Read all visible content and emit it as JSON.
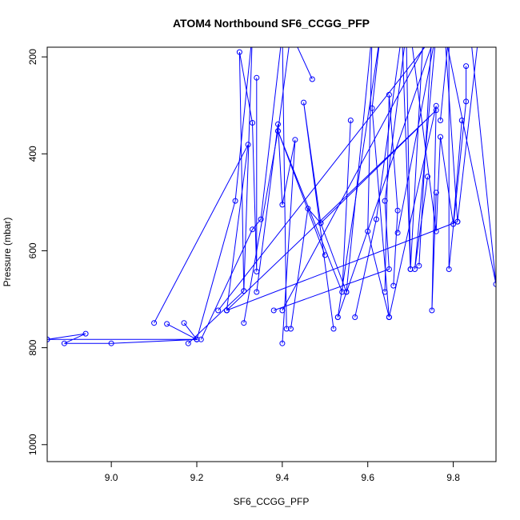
{
  "chart_data": {
    "type": "line",
    "title": "ATOM4 Northbound SF6_CCGG_PFP",
    "xlabel": "SF6_CCGG_PFP",
    "ylabel": "Pressure (mbar)",
    "xlim": [
      8.85,
      9.9
    ],
    "ylim": [
      1035,
      180
    ],
    "y_reversed": true,
    "x_ticks": [
      "9.0",
      "9.2",
      "9.4",
      "9.6",
      "9.8"
    ],
    "x_tick_values": [
      9.0,
      9.2,
      9.4,
      9.6,
      9.8
    ],
    "y_ticks": [
      "200",
      "400",
      "600",
      "800",
      "1000"
    ],
    "y_tick_values": [
      200,
      400,
      600,
      800,
      1000
    ],
    "grid": false,
    "legend": "none",
    "color": "#0000ff",
    "series": [
      {
        "points": [
          [
            8.85,
            783
          ],
          [
            8.94,
            771
          ],
          [
            8.89,
            791
          ],
          [
            9.0,
            791
          ],
          [
            9.2,
            783
          ],
          [
            9.13,
            751
          ],
          [
            9.2,
            783
          ],
          [
            8.85,
            783
          ]
        ]
      },
      {
        "points": [
          [
            9.1,
            749
          ],
          [
            9.32,
            381
          ],
          [
            9.27,
            723
          ]
        ]
      },
      {
        "points": [
          [
            9.17,
            749
          ],
          [
            9.2,
            783
          ],
          [
            9.29,
            497
          ],
          [
            9.33,
            150
          ],
          [
            9.31,
            683
          ]
        ]
      },
      {
        "points": [
          [
            9.18,
            791
          ],
          [
            9.31,
            683
          ],
          [
            9.3,
            190
          ],
          [
            9.33,
            336
          ],
          [
            9.34,
            643
          ],
          [
            9.34,
            243
          ]
        ]
      },
      {
        "points": [
          [
            9.21,
            783
          ],
          [
            9.33,
            556
          ],
          [
            9.35,
            535
          ],
          [
            9.4,
            150
          ],
          [
            9.41,
            761
          ]
        ]
      },
      {
        "points": [
          [
            9.27,
            723
          ],
          [
            9.76,
            310
          ],
          [
            9.49,
            543
          ],
          [
            9.55,
            685
          ]
        ]
      },
      {
        "points": [
          [
            9.31,
            749
          ],
          [
            9.39,
            353
          ],
          [
            9.42,
            150
          ],
          [
            9.47,
            246
          ]
        ]
      },
      {
        "points": [
          [
            9.34,
            685
          ],
          [
            9.39,
            339
          ],
          [
            9.4,
            505
          ],
          [
            9.43,
            371
          ],
          [
            9.4,
            791
          ]
        ]
      },
      {
        "points": [
          [
            9.38,
            723
          ],
          [
            9.65,
            638
          ],
          [
            9.64,
            497
          ],
          [
            9.69,
            150
          ],
          [
            9.7,
            638
          ]
        ]
      },
      {
        "points": [
          [
            9.42,
            761
          ],
          [
            9.46,
            513
          ],
          [
            9.49,
            543
          ],
          [
            9.45,
            294
          ],
          [
            9.52,
            761
          ]
        ]
      },
      {
        "points": [
          [
            9.5,
            609
          ],
          [
            9.39,
            353
          ],
          [
            9.54,
            685
          ],
          [
            9.56,
            331
          ]
        ]
      },
      {
        "points": [
          [
            9.53,
            737
          ],
          [
            9.63,
            150
          ],
          [
            9.61,
            306
          ],
          [
            9.65,
            737
          ]
        ]
      },
      {
        "points": [
          [
            9.55,
            685
          ],
          [
            9.61,
            150
          ],
          [
            9.6,
            560
          ],
          [
            9.65,
            737
          ]
        ]
      },
      {
        "points": [
          [
            9.57,
            737
          ],
          [
            9.62,
            535
          ],
          [
            9.68,
            150
          ],
          [
            9.7,
            638
          ],
          [
            9.73,
            150
          ]
        ]
      },
      {
        "points": [
          [
            9.64,
            685
          ],
          [
            9.65,
            278
          ],
          [
            9.67,
            517
          ],
          [
            9.66,
            672
          ]
        ]
      },
      {
        "points": [
          [
            9.65,
            737
          ],
          [
            9.76,
            301
          ],
          [
            9.75,
            723
          ],
          [
            9.76,
            480
          ]
        ]
      },
      {
        "points": [
          [
            9.67,
            563
          ],
          [
            9.76,
            150
          ],
          [
            9.71,
            638
          ],
          [
            9.74,
            447
          ]
        ]
      },
      {
        "points": [
          [
            9.7,
            150
          ],
          [
            9.76,
            560
          ],
          [
            9.77,
            365
          ],
          [
            9.8,
            545
          ],
          [
            9.82,
            331
          ]
        ]
      },
      {
        "points": [
          [
            9.77,
            331
          ],
          [
            9.79,
            150
          ],
          [
            9.79,
            638
          ],
          [
            9.83,
            292
          ],
          [
            9.83,
            219
          ]
        ]
      },
      {
        "points": [
          [
            9.84,
            150
          ],
          [
            9.9,
            669
          ],
          [
            9.78,
            150
          ],
          [
            9.81,
            540
          ],
          [
            9.86,
            150
          ]
        ]
      },
      {
        "points": [
          [
            9.25,
            723
          ],
          [
            9.76,
            150
          ],
          [
            9.53,
            737
          ]
        ]
      },
      {
        "points": [
          [
            9.27,
            723
          ],
          [
            9.81,
            540
          ]
        ]
      },
      {
        "points": [
          [
            9.4,
            723
          ],
          [
            9.75,
            150
          ],
          [
            9.72,
            631
          ]
        ]
      }
    ]
  }
}
